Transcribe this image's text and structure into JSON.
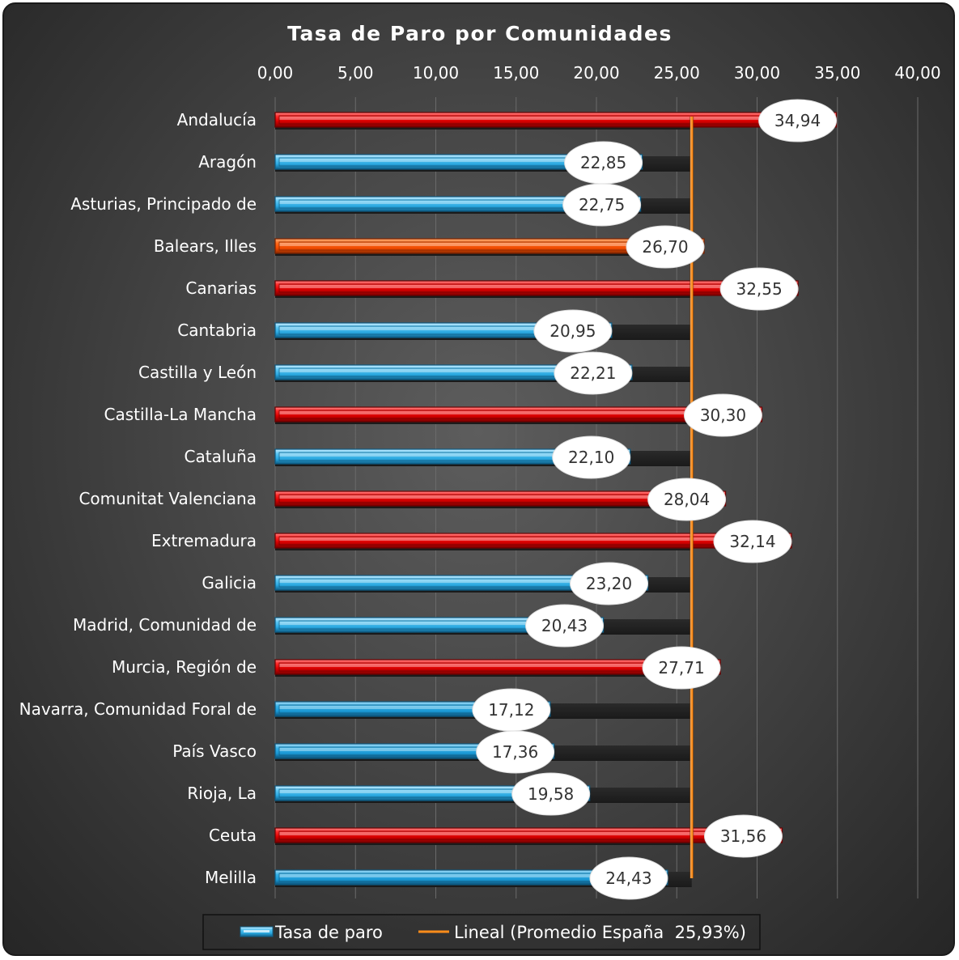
{
  "chart_data": {
    "type": "bar",
    "orientation": "horizontal",
    "title": "Tasa de Paro por Comunidades",
    "xlabel": "",
    "ylabel": "",
    "xlim": [
      0,
      40
    ],
    "x_ticks": [
      "0,00",
      "5,00",
      "10,00",
      "15,00",
      "20,00",
      "25,00",
      "30,00",
      "35,00",
      "40,00"
    ],
    "x_tick_values": [
      0,
      5,
      10,
      15,
      20,
      25,
      30,
      35,
      40
    ],
    "x_axis_position": "top",
    "grid": true,
    "categories": [
      "Andalucía",
      "Aragón",
      "Asturias, Principado de",
      "Balears, Illes",
      "Canarias",
      "Cantabria",
      "Castilla y León",
      "Castilla-La Mancha",
      "Cataluña",
      "Comunitat Valenciana",
      "Extremadura",
      "Galicia",
      "Madrid, Comunidad de",
      "Murcia, Región de",
      "Navarra, Comunidad Foral de",
      "País Vasco",
      "Rioja, La",
      "Ceuta",
      "Melilla"
    ],
    "series": [
      {
        "name": "Tasa de paro",
        "values": [
          34.94,
          22.85,
          22.75,
          26.7,
          32.55,
          20.95,
          22.21,
          30.3,
          22.1,
          28.04,
          32.14,
          23.2,
          20.43,
          27.71,
          17.12,
          17.36,
          19.58,
          31.56,
          24.43
        ],
        "data_labels": [
          "34,94",
          "22,85",
          "22,75",
          "26,70",
          "32,55",
          "20,95",
          "22,21",
          "30,30",
          "22,10",
          "28,04",
          "32,14",
          "23,20",
          "20,43",
          "27,71",
          "17,12",
          "17,36",
          "19,58",
          "31,56",
          "24,43"
        ],
        "bar_colors": [
          "#e60000",
          "#3fb8e8",
          "#3fb8e8",
          "#ff5000",
          "#e60000",
          "#3fb8e8",
          "#3fb8e8",
          "#e60000",
          "#3fb8e8",
          "#e60000",
          "#e60000",
          "#3fb8e8",
          "#3fb8e8",
          "#e60000",
          "#21a6e0",
          "#21a6e0",
          "#3fb8e8",
          "#e60000",
          "#21a6e0"
        ]
      },
      {
        "name": "Lineal (Promedio España  25,93%)",
        "type": "line",
        "value": 25.93,
        "color": "#ff8c1a"
      }
    ],
    "legend": {
      "position": "bottom",
      "entries": [
        "Tasa de paro",
        "Lineal (Promedio España  25,93%)"
      ]
    },
    "colors": {
      "above_average": "#e60000",
      "near_average": "#ff5000",
      "below_average": "#3fb8e8",
      "average_line": "#ff8c1a",
      "label_bubble": "#ffffff"
    }
  }
}
